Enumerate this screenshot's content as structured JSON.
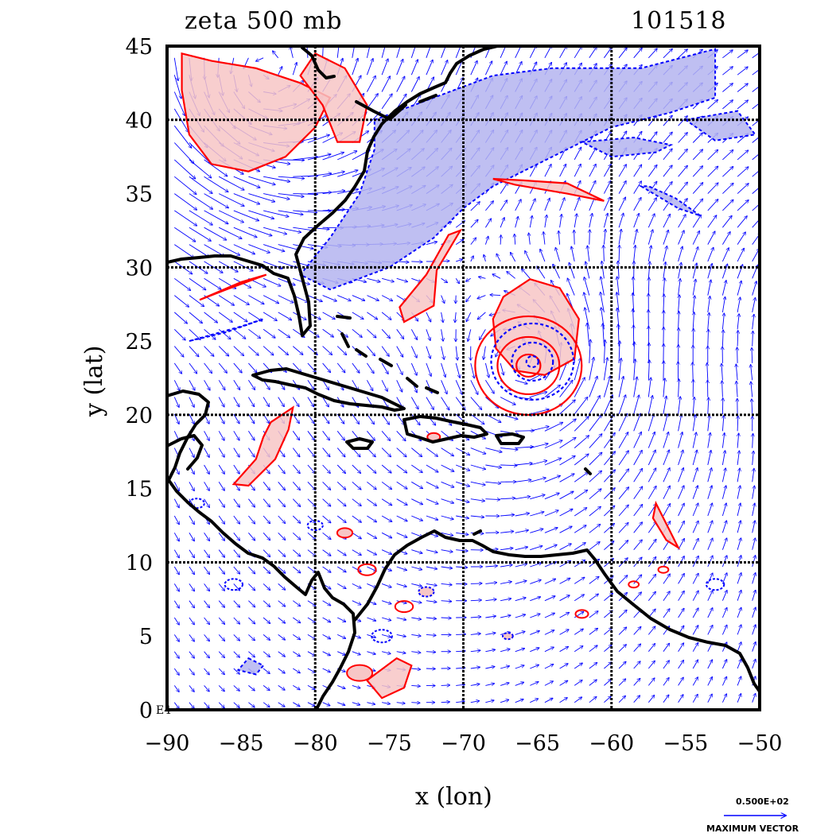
{
  "title_left": "zeta 500 mb",
  "title_right": "101518",
  "xlabel": "x (lon)",
  "ylabel": "y (lat)",
  "corner_label": "E4",
  "legend": {
    "magnitude": "0.500E+02",
    "caption": "MAXIMUM VECTOR"
  },
  "colors": {
    "positive": "#ff0000",
    "positive_fill": "#f7c6c6",
    "negative": "#0000ff",
    "negative_fill": "#b4b4f0",
    "coast": "#000000",
    "vector": "#0000ff"
  },
  "chart_data": {
    "type": "map",
    "xlim": [
      -90,
      -50
    ],
    "ylim": [
      0,
      45
    ],
    "x_ticks": [
      -90,
      -85,
      -80,
      -75,
      -70,
      -65,
      -60,
      -55,
      -50
    ],
    "y_ticks": [
      0,
      5,
      10,
      15,
      20,
      25,
      30,
      35,
      40,
      45
    ],
    "grid_x": [
      -80,
      -70,
      -60
    ],
    "grid_y": [
      10,
      20,
      30,
      40
    ],
    "field": "500 mb relative vorticity (zeta) with wind vectors",
    "positive_regions": [
      [
        [
          -89,
          44.5
        ],
        [
          -87,
          44
        ],
        [
          -84,
          43.5
        ],
        [
          -81,
          42.5
        ],
        [
          -79,
          41.5
        ],
        [
          -80,
          39.5
        ],
        [
          -82,
          37.5
        ],
        [
          -84.5,
          36.5
        ],
        [
          -87,
          37
        ],
        [
          -88.5,
          39
        ],
        [
          -89,
          42
        ]
      ],
      [
        [
          -81,
          43
        ],
        [
          -79.5,
          41
        ],
        [
          -78.5,
          38.5
        ],
        [
          -77,
          38.5
        ],
        [
          -76.5,
          41
        ],
        [
          -78,
          43.5
        ],
        [
          -80,
          44.5
        ]
      ],
      [
        [
          -67.3,
          28
        ],
        [
          -65.5,
          29.2
        ],
        [
          -63.5,
          28.6
        ],
        [
          -62.2,
          26.5
        ],
        [
          -62.5,
          23.8
        ],
        [
          -64.5,
          22.7
        ],
        [
          -66.5,
          23
        ],
        [
          -67.8,
          24.5
        ],
        [
          -68,
          26.5
        ]
      ],
      [
        [
          -74,
          26.3
        ],
        [
          -72,
          27.4
        ],
        [
          -71.8,
          29.8
        ],
        [
          -70.2,
          32.5
        ],
        [
          -71,
          32.2
        ],
        [
          -72.5,
          29.5
        ],
        [
          -74.3,
          27.3
        ]
      ],
      [
        [
          -68,
          36
        ],
        [
          -66.5,
          35.6
        ],
        [
          -63,
          35
        ],
        [
          -60.5,
          34.5
        ],
        [
          -63,
          35.7
        ],
        [
          -66,
          35.9
        ]
      ],
      [
        [
          -87.8,
          27.8
        ],
        [
          -85,
          29
        ],
        [
          -83.3,
          29.5
        ],
        [
          -86,
          28.5
        ]
      ],
      [
        [
          -83,
          19.5
        ],
        [
          -81.5,
          20.5
        ],
        [
          -81.8,
          19
        ],
        [
          -82.7,
          17
        ],
        [
          -84.5,
          15.2
        ],
        [
          -85.5,
          15.3
        ],
        [
          -84,
          17
        ],
        [
          -83.5,
          18.5
        ]
      ],
      [
        [
          -76.5,
          2
        ],
        [
          -74.5,
          3.5
        ],
        [
          -73.5,
          3
        ],
        [
          -74,
          1.5
        ],
        [
          -75.5,
          0.8
        ]
      ],
      [
        [
          -57,
          14
        ],
        [
          -56,
          12
        ],
        [
          -55.5,
          11
        ],
        [
          -56.3,
          11.5
        ],
        [
          -57.2,
          13
        ]
      ]
    ],
    "negative_regions": [
      [
        [
          -76,
          40
        ],
        [
          -72,
          41.5
        ],
        [
          -68,
          43
        ],
        [
          -64,
          43.5
        ],
        [
          -58,
          43.5
        ],
        [
          -53,
          44.8
        ],
        [
          -53,
          41.5
        ],
        [
          -56,
          40.5
        ],
        [
          -60,
          39.5
        ],
        [
          -64,
          37.5
        ],
        [
          -68,
          35.5
        ],
        [
          -70,
          34
        ],
        [
          -72,
          32
        ],
        [
          -75,
          30
        ],
        [
          -79,
          28.5
        ],
        [
          -81,
          29.5
        ],
        [
          -79,
          32
        ],
        [
          -77,
          35
        ],
        [
          -76,
          38
        ]
      ],
      [
        [
          -62,
          38.5
        ],
        [
          -58.5,
          38.8
        ],
        [
          -56,
          38.3
        ],
        [
          -57,
          37.8
        ],
        [
          -60,
          37.5
        ]
      ],
      [
        [
          -55,
          40
        ],
        [
          -51.5,
          40.6
        ],
        [
          -50.3,
          39
        ],
        [
          -53,
          38.6
        ]
      ],
      [
        [
          -58,
          35.5
        ],
        [
          -55.5,
          34
        ],
        [
          -54,
          33.5
        ],
        [
          -55.7,
          34.7
        ],
        [
          -57.5,
          35.5
        ]
      ],
      [
        [
          -88.5,
          25
        ],
        [
          -85,
          26
        ],
        [
          -83.5,
          26.5
        ],
        [
          -86,
          25.6
        ]
      ],
      [
        [
          -84.5,
          3.5
        ],
        [
          -83.5,
          3
        ],
        [
          -84,
          2.4
        ],
        [
          -85.2,
          2.7
        ]
      ]
    ],
    "wind_flow": "cyclonic circulation near (-65.5, 23.5) embedded in westerlies north of 30N"
  }
}
